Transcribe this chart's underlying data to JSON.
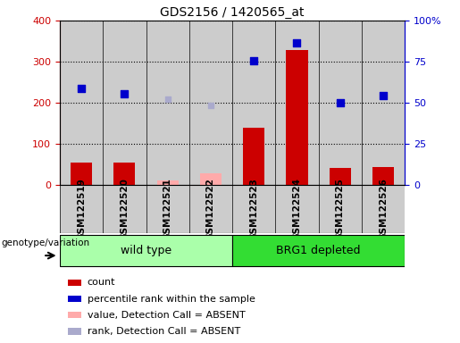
{
  "title": "GDS2156 / 1420565_at",
  "samples": [
    "GSM122519",
    "GSM122520",
    "GSM122521",
    "GSM122522",
    "GSM122523",
    "GSM122524",
    "GSM122525",
    "GSM122526"
  ],
  "bar_values": [
    55,
    55,
    null,
    null,
    140,
    328,
    42,
    44
  ],
  "bar_absent_values": [
    null,
    null,
    12,
    30,
    null,
    null,
    null,
    null
  ],
  "rank_values": [
    235,
    222,
    null,
    null,
    302,
    345,
    200,
    217
  ],
  "rank_absent_values": [
    null,
    null,
    210,
    194,
    null,
    null,
    null,
    null
  ],
  "groups": [
    {
      "label": "wild type",
      "start": 0,
      "end": 4,
      "color": "#aaffaa"
    },
    {
      "label": "BRG1 depleted",
      "start": 4,
      "end": 8,
      "color": "#33dd33"
    }
  ],
  "ylim_left": [
    0,
    400
  ],
  "ylim_right": [
    0,
    100
  ],
  "left_ticks": [
    0,
    100,
    200,
    300,
    400
  ],
  "right_ticks": [
    0,
    25,
    50,
    75,
    100
  ],
  "right_tick_labels": [
    "0",
    "25",
    "50",
    "75",
    "100%"
  ],
  "bar_color": "#cc0000",
  "bar_absent_color": "#ffaaaa",
  "rank_color": "#0000cc",
  "rank_absent_color": "#aaaacc",
  "legend_items": [
    {
      "label": "count",
      "color": "#cc0000"
    },
    {
      "label": "percentile rank within the sample",
      "color": "#0000cc"
    },
    {
      "label": "value, Detection Call = ABSENT",
      "color": "#ffaaaa"
    },
    {
      "label": "rank, Detection Call = ABSENT",
      "color": "#aaaacc"
    }
  ],
  "genotype_label": "genotype/variation",
  "bg_color": "#cccccc",
  "white": "#ffffff"
}
